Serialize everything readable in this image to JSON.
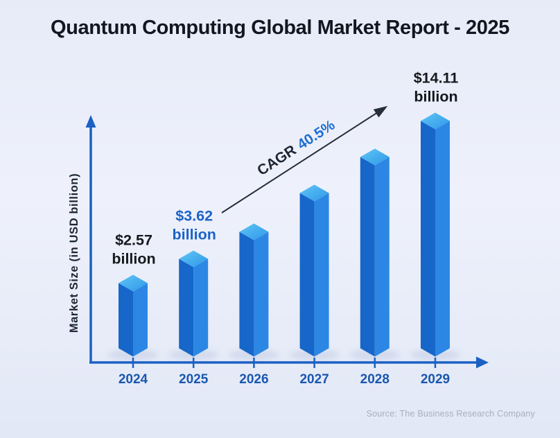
{
  "title": "Quantum Computing Global Market Report - 2025",
  "source_text": "Source: The Business Research Company",
  "y_axis_label": "Market Size (in USD billion)",
  "cagr": {
    "prefix": "CAGR",
    "value": "40.5%"
  },
  "colors": {
    "background_top": "#e7ebf8",
    "background_mid": "#eef1fb",
    "background_bottom": "#e2e8f6",
    "title_text": "#12161f",
    "axis": "#1b61c4",
    "axis_label_text": "#1c2636",
    "year_label": "#1a57ae",
    "value_dark": "#15181d",
    "value_blue": "#1b63c8",
    "cagr_dark": "#1d2433",
    "cagr_blue": "#1e6fd2",
    "arrow": "#262e3a",
    "bar_left": "#1766c9",
    "bar_right": "#2c87e4",
    "bar_top_light": "#60c6f6",
    "bar_top_dark": "#2e97e8",
    "shadow": "#9fb0d0",
    "source_text_color": "#a8aebc"
  },
  "chart_data": {
    "type": "bar",
    "title": "Quantum Computing Global Market Report - 2025",
    "xlabel": "",
    "ylabel": "Market Size (in USD billion)",
    "categories": [
      "2024",
      "2025",
      "2026",
      "2027",
      "2028",
      "2029"
    ],
    "values_usd_billion": [
      2.57,
      3.62,
      null,
      null,
      null,
      14.11
    ],
    "value_labels": [
      [
        "$2.57",
        "billion"
      ],
      [
        "$3.62",
        "billion"
      ],
      null,
      null,
      null,
      [
        "$14.11",
        "billion"
      ]
    ],
    "value_label_colors": [
      "value_dark",
      "value_blue",
      null,
      null,
      null,
      "value_dark"
    ],
    "bar_pixel_heights": [
      118,
      153,
      192,
      248,
      300,
      352
    ],
    "annotation": "CAGR 40.5%",
    "grid": false,
    "legend": "none",
    "bar_style": "isometric-3d",
    "x_axis_arrow": true,
    "y_axis_arrow": true
  }
}
